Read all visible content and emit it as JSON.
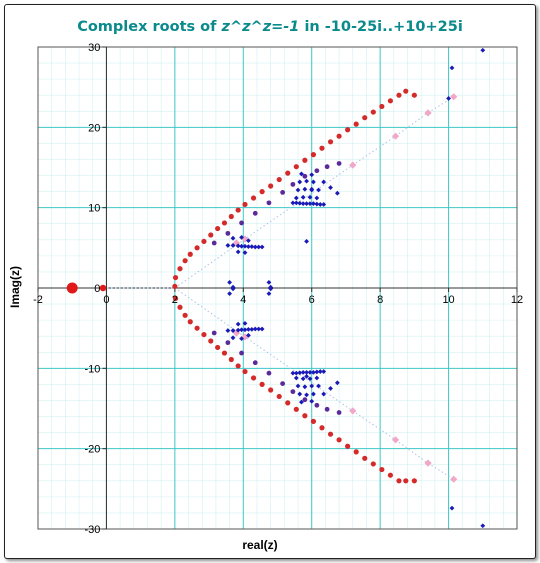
{
  "chart_data": {
    "type": "scatter",
    "title_parts": [
      {
        "text": "Complex roots of ",
        "italic": false
      },
      {
        "text": "z^z^z=-1",
        "italic": true
      },
      {
        "text": " in -10-25i..+10+25i",
        "italic": false
      }
    ],
    "title_color": "#0a8a8c",
    "xlabel": "real(z)",
    "ylabel": "Imag(z)",
    "xlim": [
      -2,
      12
    ],
    "ylim": [
      -30,
      30
    ],
    "xticks": [
      -2,
      0,
      2,
      4,
      6,
      8,
      10,
      12
    ],
    "yticks": [
      -30,
      -20,
      -10,
      0,
      10,
      20,
      30
    ],
    "grid": true,
    "grid_color": "#3ec7c7",
    "minor_grid_color": "#d4f0f0",
    "series": [
      {
        "color": "#d42a2a",
        "marker": "circle",
        "size": 2.6,
        "x": [
          2.0,
          2.02,
          2.15,
          2.3,
          2.45,
          2.65,
          2.85,
          3.05,
          3.25,
          3.45,
          3.65,
          3.85,
          4.05,
          4.3,
          4.55,
          4.8,
          5.05,
          5.3,
          5.55,
          5.8,
          6.05,
          6.3,
          6.55,
          6.8,
          7.05,
          7.3,
          7.55,
          7.8,
          8.05,
          8.3,
          8.55,
          8.75,
          9.0,
          2.02,
          2.15,
          2.3,
          2.45,
          2.65,
          2.85,
          3.05,
          3.25,
          3.45,
          3.65,
          3.85,
          4.05,
          4.3,
          4.55,
          4.8,
          5.05,
          5.3,
          5.55,
          5.8,
          6.05,
          6.3,
          6.55,
          6.8,
          7.05,
          7.3,
          7.55,
          7.8,
          8.05,
          8.3,
          8.55,
          8.75,
          9.0
        ],
        "y": [
          0.2,
          1.3,
          2.4,
          3.4,
          4.2,
          5.0,
          5.8,
          6.6,
          7.4,
          8.1,
          8.9,
          9.7,
          10.4,
          11.2,
          12.0,
          12.7,
          13.5,
          14.3,
          15.1,
          15.9,
          16.6,
          17.4,
          18.2,
          18.9,
          19.7,
          20.4,
          21.2,
          21.9,
          22.6,
          23.3,
          24.0,
          24.5,
          24.0,
          -1.3,
          -2.4,
          -3.4,
          -4.2,
          -5.0,
          -5.8,
          -6.6,
          -7.4,
          -8.1,
          -8.9,
          -9.7,
          -10.4,
          -11.2,
          -12.0,
          -12.7,
          -13.5,
          -14.3,
          -15.1,
          -15.9,
          -16.6,
          -17.4,
          -18.2,
          -18.9,
          -19.7,
          -20.4,
          -21.2,
          -21.9,
          -22.6,
          -23.3,
          -24.0,
          -24.0,
          -24.0
        ]
      },
      {
        "color": "#f2a7c8",
        "marker": "diamond",
        "size": 3.6,
        "x": [
          3.8,
          4.05,
          7.2,
          8.45,
          9.4,
          10.15,
          3.8,
          4.05,
          7.2,
          8.45,
          9.4,
          10.15
        ],
        "y": [
          5.6,
          6.1,
          15.3,
          18.9,
          21.8,
          23.8,
          -5.6,
          -6.1,
          -15.3,
          -18.9,
          -21.8,
          -23.8
        ]
      },
      {
        "color": "#5a2a9a",
        "marker": "circle",
        "size": 2.4,
        "x": [
          3.15,
          3.55,
          3.95,
          4.35,
          4.75,
          5.15,
          5.45,
          5.8,
          6.15,
          6.45,
          6.8,
          3.15,
          3.55,
          3.95,
          4.35,
          4.75,
          5.15,
          5.45,
          5.8,
          6.15,
          6.45,
          6.8
        ],
        "y": [
          5.6,
          6.8,
          8.1,
          9.3,
          10.6,
          11.9,
          12.9,
          13.9,
          14.6,
          15.1,
          15.5,
          -5.6,
          -6.8,
          -8.1,
          -9.3,
          -10.6,
          -11.9,
          -12.9,
          -13.9,
          -14.6,
          -15.1,
          -15.5
        ]
      },
      {
        "color": "#1a1ab8",
        "marker": "diamond",
        "size": 2.4,
        "x": [
          3.55,
          3.7,
          3.85,
          3.95,
          4.05,
          4.15,
          4.25,
          4.35,
          4.45,
          4.55,
          3.7,
          3.95,
          4.15,
          3.85,
          4.05,
          5.45,
          5.55,
          5.65,
          5.75,
          5.85,
          5.95,
          6.05,
          6.15,
          6.25,
          6.35,
          5.6,
          5.8,
          6.0,
          6.2,
          5.55,
          5.75,
          5.95,
          6.15,
          5.65,
          5.85,
          6.05,
          5.7,
          6.0,
          6.35,
          6.55,
          6.75,
          5.85,
          3.6,
          3.7,
          4.75,
          4.8,
          6.0,
          10.1,
          11.0,
          10.0,
          3.55,
          3.7,
          3.85,
          3.95,
          4.05,
          4.15,
          4.25,
          4.35,
          4.45,
          4.55,
          3.7,
          3.95,
          4.15,
          3.85,
          4.05,
          5.45,
          5.55,
          5.65,
          5.75,
          5.85,
          5.95,
          6.05,
          6.15,
          6.25,
          6.35,
          5.6,
          5.8,
          6.0,
          6.2,
          5.55,
          5.75,
          5.95,
          6.15,
          5.65,
          5.85,
          6.05,
          5.7,
          6.0,
          6.35,
          6.55,
          6.75,
          5.85,
          3.6,
          3.7,
          4.75,
          4.8,
          10.1,
          11.0
        ],
        "y": [
          5.3,
          5.3,
          5.25,
          5.2,
          5.2,
          5.15,
          5.15,
          5.1,
          5.1,
          5.1,
          6.2,
          6.3,
          5.9,
          4.5,
          4.4,
          10.6,
          10.6,
          10.55,
          10.5,
          10.5,
          10.5,
          10.5,
          10.45,
          10.4,
          10.4,
          12.2,
          12.3,
          12.2,
          12.2,
          11.2,
          11.3,
          11.3,
          11.2,
          13.2,
          13.3,
          13.2,
          14.2,
          14.1,
          13.2,
          12.5,
          11.8,
          5.8,
          0.7,
          0.1,
          0.7,
          0.1,
          12.3,
          27.4,
          29.6,
          23.6,
          -5.3,
          -5.3,
          -5.25,
          -5.2,
          -5.2,
          -5.15,
          -5.15,
          -5.1,
          -5.1,
          -5.1,
          -6.2,
          -6.3,
          -5.9,
          -4.5,
          -4.4,
          -10.6,
          -10.6,
          -10.55,
          -10.5,
          -10.5,
          -10.5,
          -10.5,
          -10.45,
          -10.4,
          -10.4,
          -12.2,
          -12.3,
          -12.2,
          -12.2,
          -11.2,
          -11.3,
          -11.3,
          -11.2,
          -13.2,
          -13.3,
          -13.2,
          -14.2,
          -14.1,
          -13.2,
          -12.5,
          -11.8,
          -11.0,
          -0.7,
          -0.1,
          -0.7,
          -0.1,
          -27.4,
          -29.6
        ]
      },
      {
        "color": "#e01818",
        "marker": "circle",
        "size": 5.5,
        "x": [
          -1.0
        ],
        "y": [
          0.0
        ]
      },
      {
        "color": "#e01818",
        "marker": "circle",
        "size": 3.2,
        "x": [
          -0.1
        ],
        "y": [
          0.0
        ]
      }
    ],
    "trendlines": [
      {
        "color": "#a8c4e8",
        "dash": "1.5,2.5",
        "x": [
          2.0,
          4.05,
          7.2,
          8.45,
          9.4,
          10.15
        ],
        "y": [
          0.0,
          6.1,
          15.3,
          18.9,
          21.8,
          23.8
        ]
      },
      {
        "color": "#a8c4e8",
        "dash": "1.5,2.5",
        "x": [
          2.0,
          4.05,
          7.2,
          8.45,
          9.4,
          10.15
        ],
        "y": [
          0.0,
          -6.1,
          -15.3,
          -18.9,
          -21.8,
          -23.8
        ]
      },
      {
        "color": "#a8c4e8",
        "dash": "1.5,2.5",
        "x": [
          -0.1,
          2.0
        ],
        "y": [
          0.0,
          0.0
        ]
      }
    ]
  }
}
